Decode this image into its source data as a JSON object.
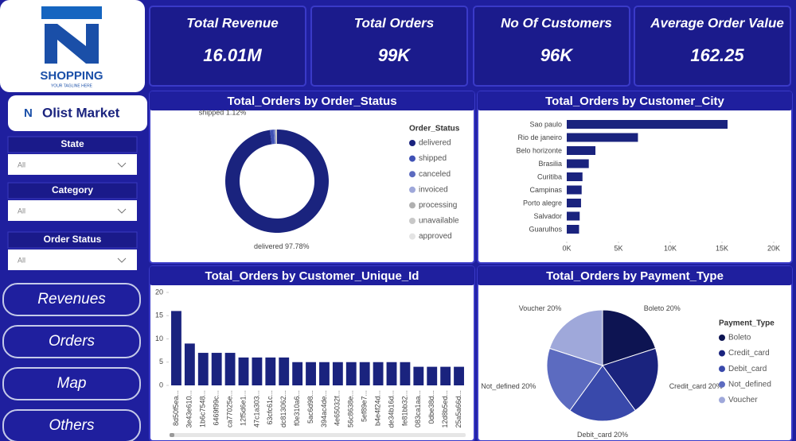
{
  "logo": {
    "brand": "SHOPPING",
    "tagline": "YOUR TAGLINE HERE"
  },
  "app_title": "Olist Market",
  "filters": [
    {
      "label": "State",
      "value": "All"
    },
    {
      "label": "Category",
      "value": "All"
    },
    {
      "label": "Order Status",
      "value": "All"
    }
  ],
  "nav": [
    "Revenues",
    "Orders",
    "Map",
    "Others"
  ],
  "kpis": [
    {
      "label": "Total Revenue",
      "value": "16.01M"
    },
    {
      "label": "Total Orders",
      "value": "99K"
    },
    {
      "label": "No Of Customers",
      "value": "96K"
    },
    {
      "label": "Average Order Value",
      "value": "162.25"
    }
  ],
  "chart_data": [
    {
      "type": "donut",
      "title": "Total_Orders by Order_Status",
      "legend_title": "Order_Status",
      "categories": [
        "delivered",
        "shipped",
        "canceled",
        "invoiced",
        "processing",
        "unavailable",
        "approved"
      ],
      "values": [
        97.78,
        1.12,
        0.4,
        0.2,
        0.2,
        0.29,
        0.01
      ],
      "value_labels": [
        "97.78%",
        "1.12%",
        null,
        null,
        null,
        null,
        null
      ],
      "colors": [
        "#1a237e",
        "#3f51b5",
        "#5c6bc0",
        "#9fa8da",
        "#b0b0b0",
        "#c8c8c8",
        "#e4e4e4"
      ]
    },
    {
      "type": "hbar",
      "title": "Total_Orders by Customer_City",
      "color": "#1a237e",
      "categories": [
        "Sao paulo",
        "Rio de janeiro",
        "Belo horizonte",
        "Brasilia",
        "Curitiba",
        "Campinas",
        "Porto alegre",
        "Salvador",
        "Guarulhos"
      ],
      "values": [
        15540,
        6880,
        2770,
        2130,
        1520,
        1440,
        1380,
        1250,
        1190
      ],
      "xlim": [
        0,
        20000
      ],
      "xticks": [
        {
          "value": 0,
          "label": "0K"
        },
        {
          "value": 5000,
          "label": "5K"
        },
        {
          "value": 10000,
          "label": "10K"
        },
        {
          "value": 15000,
          "label": "15K"
        },
        {
          "value": 20000,
          "label": "20K"
        }
      ]
    },
    {
      "type": "bar",
      "title": "Total_Orders by Customer_Unique_Id",
      "color": "#1a237e",
      "categories": [
        "8d50f5ea...",
        "3e43e610...",
        "1b6c7548...",
        "6469f99c...",
        "ca77025e...",
        "12f5d6e1...",
        "47c1a303...",
        "63cfc61c...",
        "dc813062...",
        "f0e310a6...",
        "5ac6d98...",
        "394ac4de...",
        "4e65032f...",
        "56c8638e...",
        "5ef89e7...",
        "b4e4f24d...",
        "de34b16d...",
        "fe81bb32...",
        "083ca1aa...",
        "0dbe38d...",
        "12d8b5ed...",
        "25a5a66d..."
      ],
      "values": [
        16,
        9,
        7,
        7,
        7,
        6,
        6,
        6,
        6,
        5,
        5,
        5,
        5,
        5,
        5,
        5,
        5,
        5,
        4,
        4,
        4,
        4
      ],
      "ylim": [
        0,
        20
      ],
      "yticks": [
        0,
        5,
        10,
        15,
        20
      ]
    },
    {
      "type": "pie",
      "title": "Total_Orders by Payment_Type",
      "legend_title": "Payment_Type",
      "categories": [
        "Boleto",
        "Credit_card",
        "Debit_card",
        "Not_defined",
        "Voucher"
      ],
      "values": [
        20,
        20,
        20,
        20,
        20
      ],
      "value_labels": [
        "20%",
        "20%",
        "20%",
        "20%",
        "20%"
      ],
      "colors": [
        "#0d1452",
        "#1a237e",
        "#3949ab",
        "#5c6bc0",
        "#9fa8da"
      ]
    }
  ]
}
